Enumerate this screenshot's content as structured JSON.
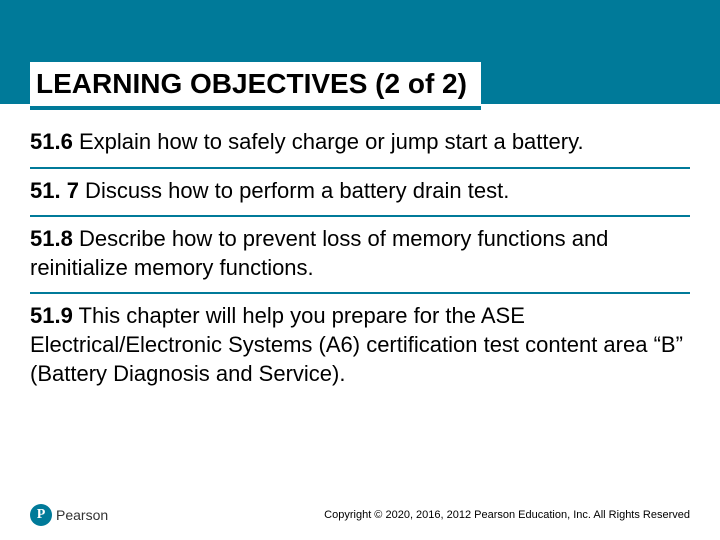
{
  "colors": {
    "brand": "#007a99",
    "background": "#ffffff",
    "text": "#000000"
  },
  "header": {
    "title": "LEARNING OBJECTIVES (2 of 2)",
    "title_fontsize": 28,
    "title_fontweight": "bold",
    "underline_color": "#007a99"
  },
  "objectives": [
    {
      "num": "51.6",
      "text": " Explain how to safely charge or jump start a battery."
    },
    {
      "num": "51. 7",
      "text": "  Discuss how to perform a battery drain test."
    },
    {
      "num": "51.8",
      "text": " Describe how to prevent loss of memory functions and reinitialize memory functions."
    },
    {
      "num": "51.9",
      "text": " This chapter will help you prepare for the ASE Electrical/Electronic Systems (A6) certification test content area “B” (Battery Diagnosis and Service)."
    }
  ],
  "objective_style": {
    "fontsize": 22,
    "divider_color": "#007a99",
    "divider_width": 2
  },
  "footer": {
    "logo_letter": "P",
    "logo_text": "Pearson",
    "copyright": "Copyright © 2020, 2016, 2012 Pearson Education, Inc. All Rights Reserved"
  }
}
